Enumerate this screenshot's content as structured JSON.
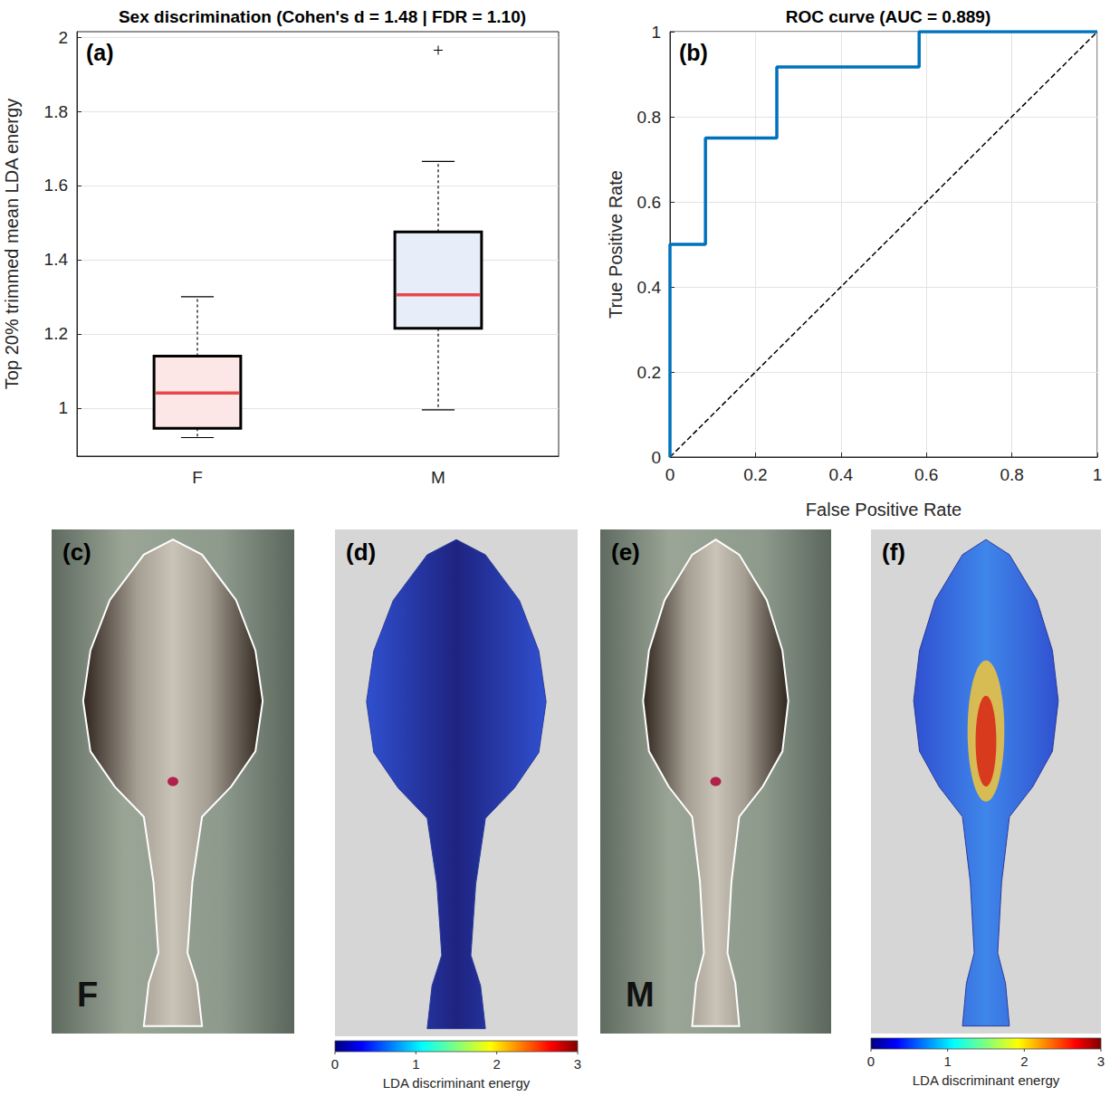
{
  "chart_data": [
    {
      "type": "boxplot",
      "panel": "(a)",
      "title": "Sex discrimination (Cohen's d = 1.48 | FDR = 1.10)",
      "y_label": "Top 20% trimmed mean LDA energy",
      "categories": [
        "F",
        "M"
      ],
      "boxes": [
        {
          "whisker_low": 0.92,
          "q1": 0.945,
          "median": 1.04,
          "q3": 1.14,
          "whisker_high": 1.3,
          "outliers": []
        },
        {
          "whisker_low": 0.995,
          "q1": 1.215,
          "median": 1.305,
          "q3": 1.475,
          "whisker_high": 1.665,
          "outliers": [
            1.965
          ]
        }
      ],
      "colors": [
        "#fde6e6",
        "#e8eef9"
      ],
      "color": "#e8474c",
      "ylim": [
        0.87,
        2.015
      ],
      "yticks": [
        1,
        1.2,
        1.4,
        1.6,
        1.8,
        2
      ],
      "grid": true
    },
    {
      "type": "line",
      "panel": "(b)",
      "title": "ROC curve (AUC = 0.889)",
      "x_label": "False Positive Rate",
      "y_label": "True Positive Rate",
      "series": [
        {
          "x": [
            0,
            0,
            0.083,
            0.083,
            0.25,
            0.25,
            0.583,
            0.583,
            1
          ],
          "values": [
            0,
            0.5,
            0.5,
            0.75,
            0.75,
            0.917,
            0.917,
            1,
            1
          ],
          "color": "#0072bd",
          "line_style": "solid"
        },
        {
          "x": [
            0,
            1
          ],
          "values": [
            0,
            1
          ],
          "color": "#000000",
          "line_style": "dashed"
        }
      ],
      "xlim": [
        0,
        1
      ],
      "ylim": [
        0,
        1
      ],
      "xticks": [
        0,
        0.2,
        0.4,
        0.6,
        0.8,
        1
      ],
      "yticks": [
        0,
        0.2,
        0.4,
        0.6,
        0.8,
        1
      ],
      "grid": true
    },
    {
      "type": "image",
      "panel": "(c)",
      "label": "F"
    },
    {
      "type": "heatmap_image",
      "panel": "(d)",
      "colorbar": {
        "range": [
          0,
          3
        ],
        "ticks": [
          0,
          1,
          2,
          3
        ],
        "label": "LDA discriminant energy"
      }
    },
    {
      "type": "image",
      "panel": "(e)",
      "label": "M"
    },
    {
      "type": "heatmap_image",
      "panel": "(f)",
      "colorbar": {
        "range": [
          0,
          3
        ],
        "ticks": [
          0,
          1,
          2,
          3
        ],
        "label": "LDA discriminant energy"
      }
    }
  ]
}
